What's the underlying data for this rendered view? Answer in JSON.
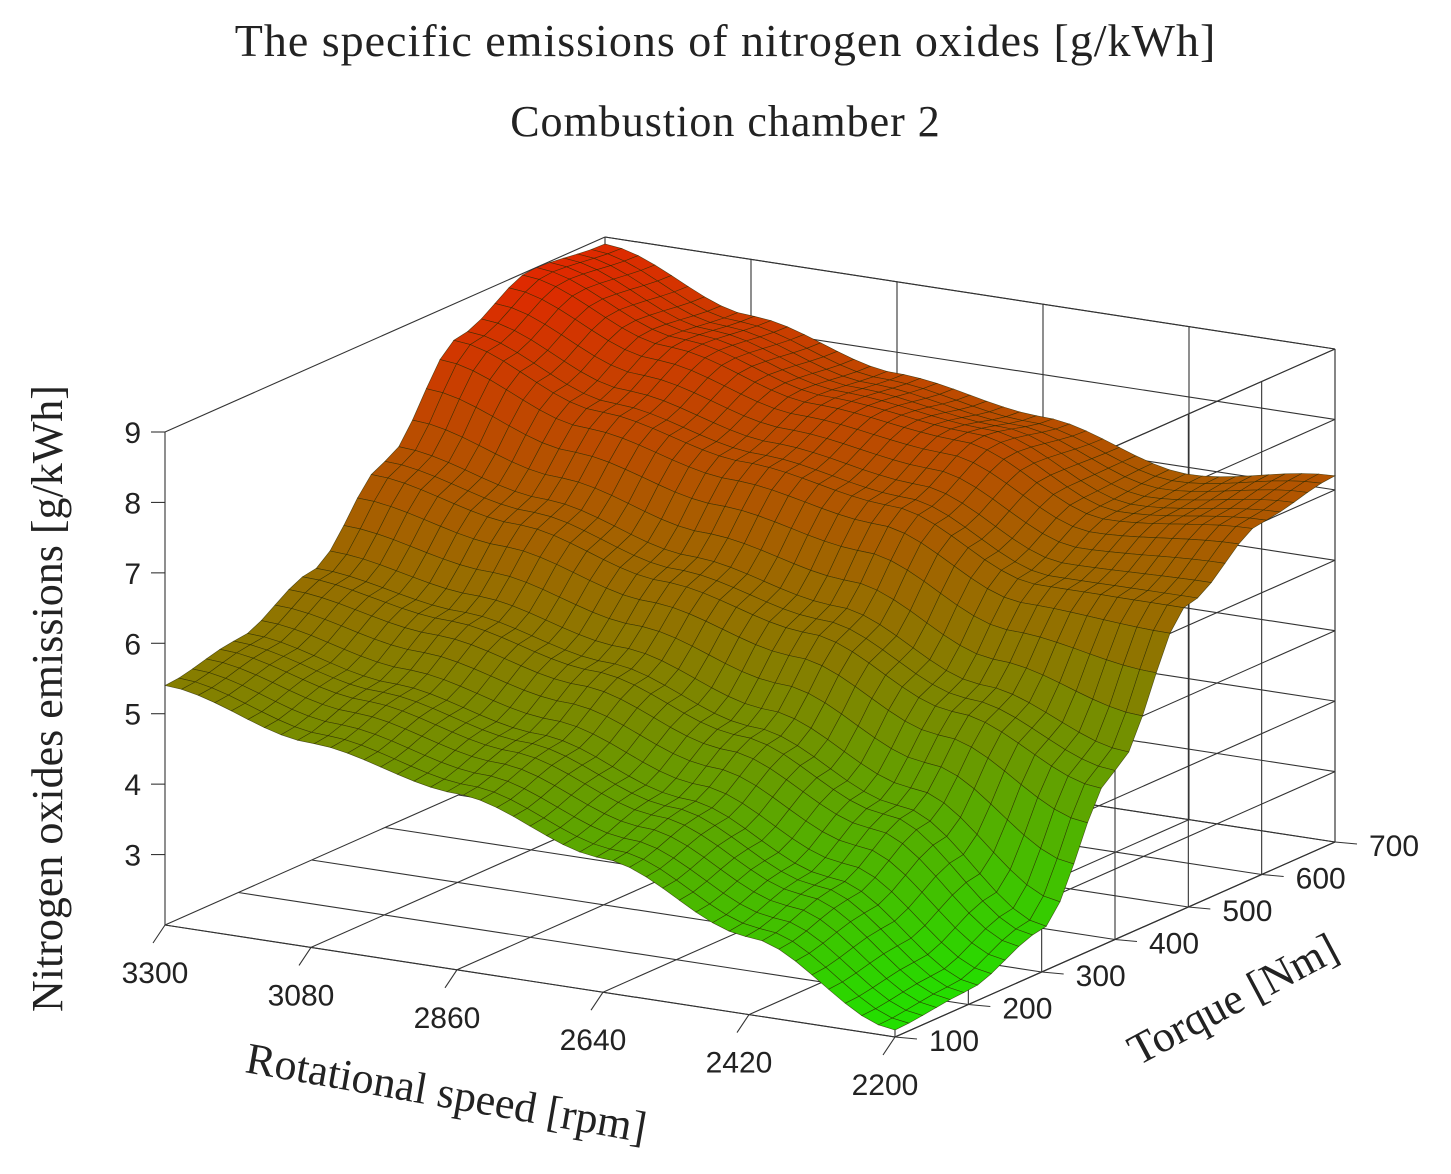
{
  "chart_data": {
    "type": "surface3d",
    "title": "The specific emissions of nitrogen oxides [g/kWh]",
    "subtitle": "Combustion chamber 2",
    "xlabel": "Rotational speed [rpm]",
    "ylabel": "Torque [Nm]",
    "zlabel": "Nitrogen oxides emissions  [g/kWh]",
    "x_ticks": [
      3300,
      3080,
      2860,
      2640,
      2420,
      2200
    ],
    "y_ticks": [
      100,
      200,
      300,
      400,
      500,
      600,
      700
    ],
    "z_ticks": [
      3,
      4,
      5,
      6,
      7,
      8,
      9
    ],
    "xlim": [
      2200,
      3300
    ],
    "ylim": [
      100,
      700
    ],
    "zlim": [
      2,
      9
    ],
    "colormap": {
      "low": "#22e000",
      "mid": "#8a7a00",
      "high": "#e02800"
    },
    "surface": {
      "speed_rpm": [
        3300,
        3080,
        2860,
        2640,
        2420,
        2200
      ],
      "torque_nm": [
        100,
        200,
        300,
        400,
        500,
        600,
        700
      ],
      "nox_g_per_kwh": [
        [
          5.4,
          5.6,
          6.1,
          7.2,
          8.5,
          9.0,
          8.9
        ],
        [
          4.9,
          5.2,
          5.8,
          6.8,
          7.8,
          8.3,
          8.2
        ],
        [
          4.5,
          4.8,
          5.4,
          6.3,
          7.4,
          7.8,
          7.7
        ],
        [
          3.9,
          4.2,
          4.8,
          5.9,
          7.1,
          7.6,
          7.4
        ],
        [
          3.1,
          3.4,
          4.0,
          5.1,
          6.3,
          6.8,
          6.9
        ],
        [
          2.1,
          2.2,
          2.6,
          4.4,
          6.3,
          7.0,
          7.2
        ]
      ]
    }
  }
}
